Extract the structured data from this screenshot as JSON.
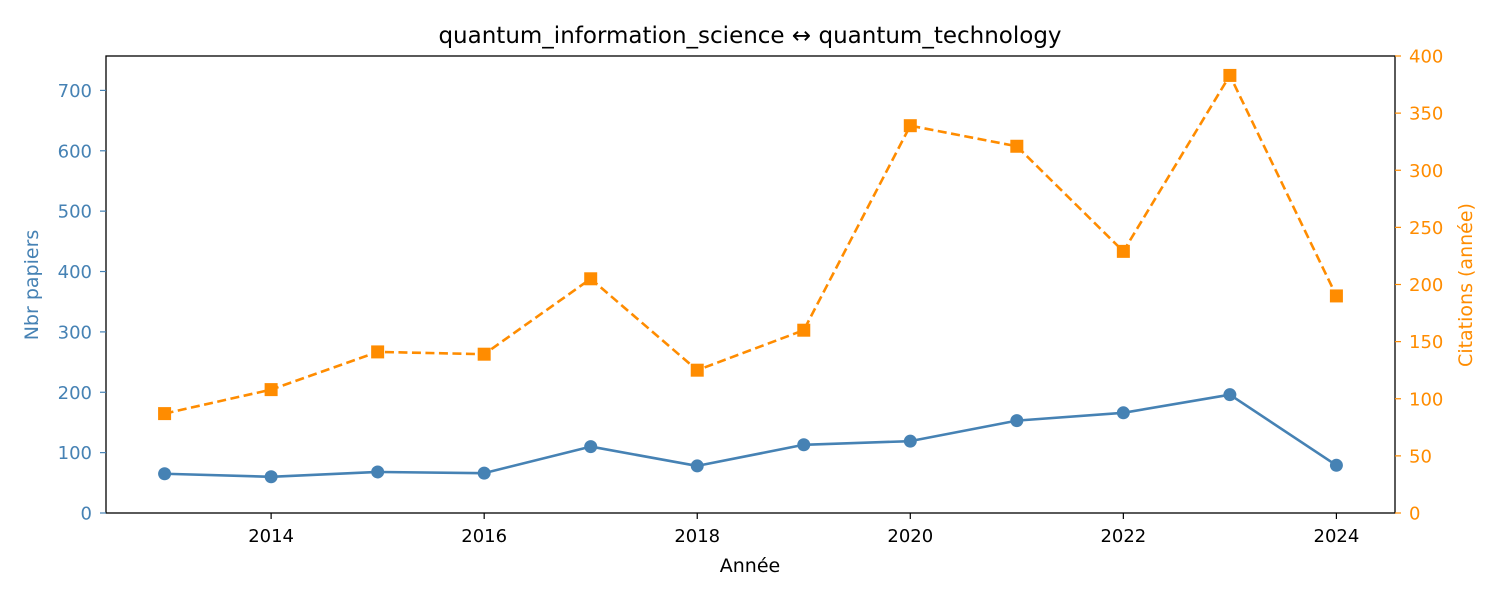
{
  "chart_data": {
    "type": "line",
    "title": "quantum_information_science  ↔  quantum_technology",
    "xlabel": "Année",
    "ylabel_left": "Nbr papiers",
    "ylabel_right": "Citations (année)",
    "x": [
      2013,
      2014,
      2015,
      2016,
      2017,
      2018,
      2019,
      2020,
      2021,
      2022,
      2023,
      2024
    ],
    "xlim": [
      2012.45,
      2024.55
    ],
    "xticks": [
      2014,
      2016,
      2018,
      2020,
      2022,
      2024
    ],
    "ylim_left": [
      0,
      757
    ],
    "yticks_left": [
      0,
      100,
      200,
      300,
      400,
      500,
      600,
      700
    ],
    "ylim_right": [
      0,
      400
    ],
    "yticks_right": [
      0,
      50,
      100,
      150,
      200,
      250,
      300,
      350,
      400
    ],
    "series": [
      {
        "axis": "left",
        "color": "#4682b4",
        "marker": "circle",
        "linestyle": "solid",
        "values": [
          65,
          60,
          68,
          66,
          110,
          78,
          113,
          119,
          153,
          166,
          196,
          79
        ]
      },
      {
        "axis": "right",
        "color": "#ff8c00",
        "marker": "square",
        "linestyle": "dashed",
        "values": [
          87,
          108,
          141,
          139,
          205,
          125,
          160,
          339,
          321,
          229,
          383,
          190
        ]
      }
    ],
    "grid": false,
    "legend": "none"
  }
}
